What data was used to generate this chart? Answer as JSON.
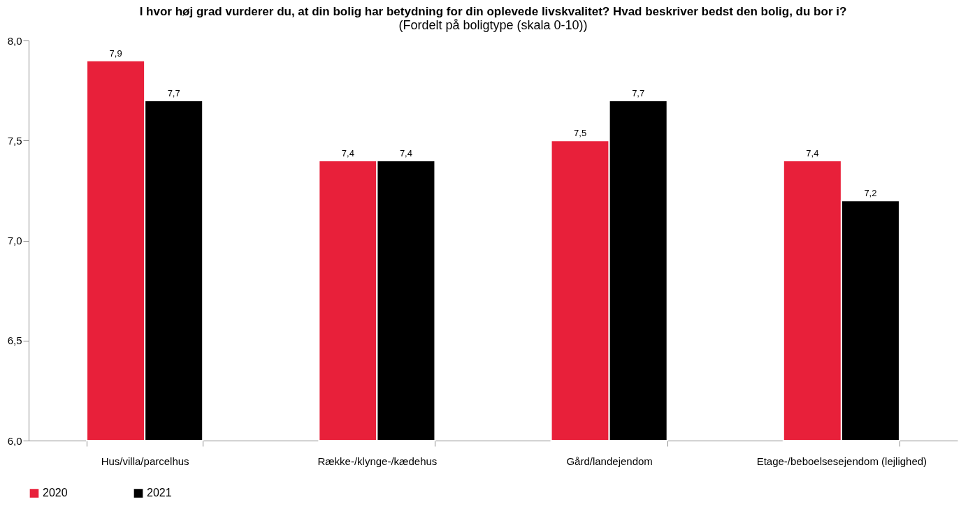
{
  "chart_data": {
    "type": "bar",
    "title": "I hvor høj grad vurderer du, at din bolig har betydning for din oplevede livskvalitet? Hvad beskriver bedst den bolig, du bor i?",
    "subtitle": "(Fordelt på boligtype (skala 0-10))",
    "categories": [
      "Hus/villa/parcelhus",
      "Række-/klynge-/kædehus",
      "Gård/landejendom",
      "Etage-/beboelsesejendom (lejlighed)"
    ],
    "series": [
      {
        "name": "2020",
        "color": "#e8203a",
        "values": [
          7.9,
          7.4,
          7.5,
          7.4
        ],
        "value_labels": [
          "7,9",
          "7,4",
          "7,5",
          "7,4"
        ]
      },
      {
        "name": "2021",
        "color": "#000000",
        "values": [
          7.7,
          7.4,
          7.7,
          7.2
        ],
        "value_labels": [
          "7,7",
          "7,4",
          "7,7",
          "7,2"
        ]
      }
    ],
    "ylim": [
      6,
      8
    ],
    "yticks": [
      {
        "value": 6,
        "label": "6,0"
      },
      {
        "value": 6.5,
        "label": "6,5"
      },
      {
        "value": 7,
        "label": "7,0"
      },
      {
        "value": 7.5,
        "label": "7,5"
      },
      {
        "value": 8,
        "label": "8,0"
      }
    ],
    "grid": false,
    "legend": "bottom left"
  }
}
